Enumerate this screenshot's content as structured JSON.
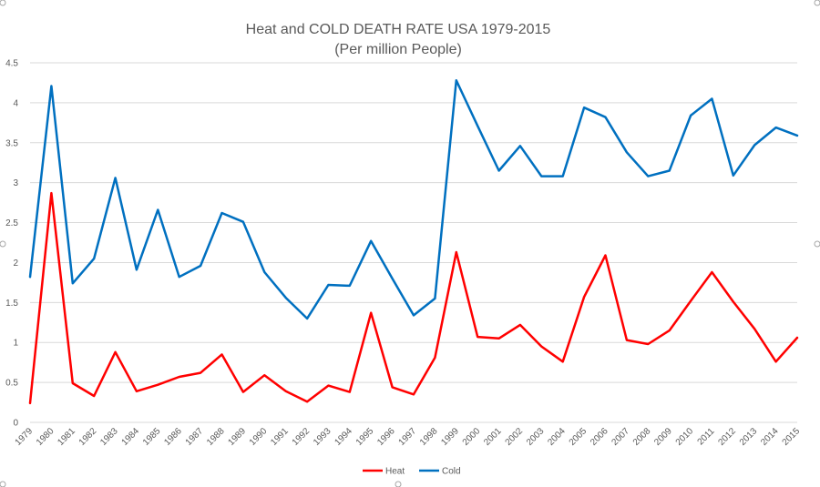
{
  "chart_data": {
    "type": "line",
    "title": "Heat and COLD DEATH RATE USA 1979-2015",
    "subtitle": "(Per million People)",
    "xlabel": "",
    "ylabel": "",
    "ylim": [
      0,
      4.5
    ],
    "yticks": [
      "0",
      "0.5",
      "1",
      "1.5",
      "2",
      "2.5",
      "3",
      "3.5",
      "4",
      "4.5"
    ],
    "grid": true,
    "legend_position": "bottom",
    "categories": [
      "1979",
      "1980",
      "1981",
      "1982",
      "1983",
      "1984",
      "1985",
      "1986",
      "1987",
      "1988",
      "1989",
      "1990",
      "1991",
      "1992",
      "1993",
      "1994",
      "1995",
      "1996",
      "1997",
      "1998",
      "1999",
      "2000",
      "2001",
      "2002",
      "2003",
      "2004",
      "2005",
      "2006",
      "2007",
      "2008",
      "2009",
      "2010",
      "2011",
      "2012",
      "2013",
      "2014",
      "2015"
    ],
    "series": [
      {
        "name": "Heat",
        "color": "#ff0000",
        "values": [
          0.24,
          2.87,
          0.49,
          0.33,
          0.88,
          0.39,
          0.47,
          0.57,
          0.62,
          0.85,
          0.38,
          0.59,
          0.39,
          0.26,
          0.46,
          0.38,
          1.37,
          0.44,
          0.35,
          0.81,
          2.13,
          1.07,
          1.05,
          1.22,
          0.95,
          0.76,
          1.57,
          2.09,
          1.03,
          0.98,
          1.15,
          1.52,
          1.88,
          1.51,
          1.17,
          0.76,
          1.06
        ]
      },
      {
        "name": "Cold",
        "color": "#0070c0",
        "values": [
          1.82,
          4.21,
          1.74,
          2.05,
          3.06,
          1.91,
          2.66,
          1.82,
          1.96,
          2.62,
          2.51,
          1.88,
          1.56,
          1.3,
          1.72,
          1.71,
          2.27,
          1.8,
          1.34,
          1.55,
          4.28,
          3.71,
          3.15,
          3.46,
          3.08,
          3.08,
          3.94,
          3.82,
          3.38,
          3.08,
          3.15,
          3.84,
          4.05,
          3.09,
          3.47,
          3.69,
          3.59
        ]
      }
    ]
  }
}
